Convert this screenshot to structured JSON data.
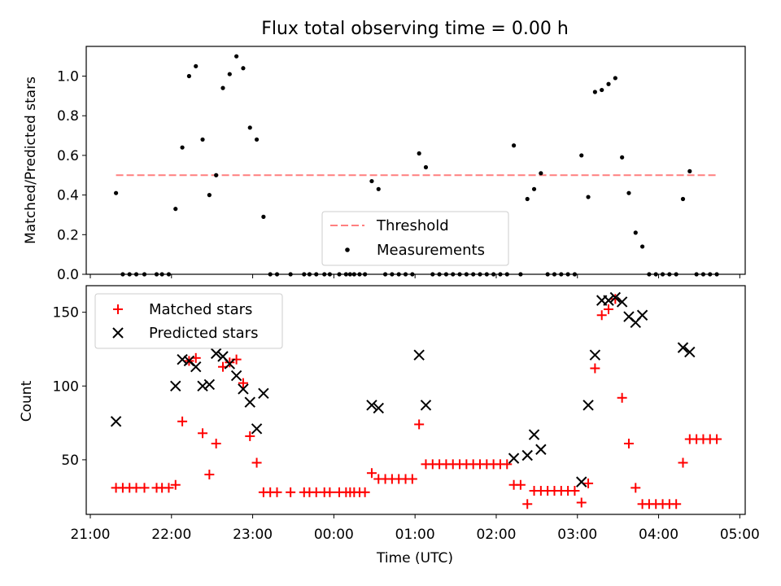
{
  "chart_data": [
    {
      "type": "scatter",
      "title": "Flux total observing time = 0.00 h",
      "xlabel": "",
      "ylabel": "Matched/Predicted stars",
      "ylim": [
        0,
        1.15
      ],
      "y_ticks": [
        "0.0",
        "0.2",
        "0.4",
        "0.6",
        "0.8",
        "1.0"
      ],
      "legend_position": "lower-center",
      "threshold": {
        "name": "Threshold",
        "value": 0.5,
        "x_start": "21:19",
        "x_end": "04:43",
        "color": "#ff7f7f"
      },
      "series": [
        {
          "name": "Measurements",
          "color": "#000000",
          "points": [
            [
              "21:19",
              0.41
            ],
            [
              "21:24",
              0.0
            ],
            [
              "21:29",
              0.0
            ],
            [
              "21:34",
              0.0
            ],
            [
              "21:40",
              0.0
            ],
            [
              "21:49",
              0.0
            ],
            [
              "21:53",
              0.0
            ],
            [
              "21:58",
              0.0
            ],
            [
              "22:03",
              0.33
            ],
            [
              "22:08",
              0.64
            ],
            [
              "22:13",
              1.0
            ],
            [
              "22:18",
              1.05
            ],
            [
              "22:23",
              0.68
            ],
            [
              "22:28",
              0.4
            ],
            [
              "22:33",
              0.5
            ],
            [
              "22:38",
              0.94
            ],
            [
              "22:43",
              1.01
            ],
            [
              "22:48",
              1.1
            ],
            [
              "22:53",
              1.04
            ],
            [
              "22:58",
              0.74
            ],
            [
              "23:03",
              0.68
            ],
            [
              "23:08",
              0.29
            ],
            [
              "23:13",
              0.0
            ],
            [
              "23:18",
              0.0
            ],
            [
              "23:28",
              0.0
            ],
            [
              "23:38",
              0.0
            ],
            [
              "23:42",
              0.0
            ],
            [
              "23:47",
              0.0
            ],
            [
              "23:53",
              0.0
            ],
            [
              "23:57",
              0.0
            ],
            [
              "00:04",
              0.0
            ],
            [
              "00:09",
              0.0
            ],
            [
              "00:12",
              0.0
            ],
            [
              "00:15",
              0.0
            ],
            [
              "00:19",
              0.0
            ],
            [
              "00:23",
              0.0
            ],
            [
              "00:28",
              0.47
            ],
            [
              "00:33",
              0.43
            ],
            [
              "00:38",
              0.0
            ],
            [
              "00:43",
              0.0
            ],
            [
              "00:48",
              0.0
            ],
            [
              "00:53",
              0.0
            ],
            [
              "00:58",
              0.0
            ],
            [
              "01:03",
              0.61
            ],
            [
              "01:08",
              0.54
            ],
            [
              "01:13",
              0.0
            ],
            [
              "01:18",
              0.0
            ],
            [
              "01:23",
              0.0
            ],
            [
              "01:28",
              0.0
            ],
            [
              "01:33",
              0.0
            ],
            [
              "01:38",
              0.0
            ],
            [
              "01:43",
              0.0
            ],
            [
              "01:48",
              0.0
            ],
            [
              "01:53",
              0.0
            ],
            [
              "01:58",
              0.0
            ],
            [
              "02:03",
              0.0
            ],
            [
              "02:08",
              0.0
            ],
            [
              "02:13",
              0.65
            ],
            [
              "02:18",
              0.0
            ],
            [
              "02:23",
              0.38
            ],
            [
              "02:28",
              0.43
            ],
            [
              "02:33",
              0.51
            ],
            [
              "02:38",
              0.0
            ],
            [
              "02:43",
              0.0
            ],
            [
              "02:48",
              0.0
            ],
            [
              "02:53",
              0.0
            ],
            [
              "02:58",
              0.0
            ],
            [
              "03:03",
              0.6
            ],
            [
              "03:08",
              0.39
            ],
            [
              "03:13",
              0.92
            ],
            [
              "03:18",
              0.93
            ],
            [
              "03:23",
              0.96
            ],
            [
              "03:28",
              0.99
            ],
            [
              "03:33",
              0.59
            ],
            [
              "03:38",
              0.41
            ],
            [
              "03:43",
              0.21
            ],
            [
              "03:48",
              0.14
            ],
            [
              "03:53",
              0.0
            ],
            [
              "03:58",
              0.0
            ],
            [
              "04:03",
              0.0
            ],
            [
              "04:08",
              0.0
            ],
            [
              "04:13",
              0.0
            ],
            [
              "04:18",
              0.38
            ],
            [
              "04:23",
              0.52
            ],
            [
              "04:28",
              0.0
            ],
            [
              "04:33",
              0.0
            ],
            [
              "04:38",
              0.0
            ],
            [
              "04:43",
              0.0
            ]
          ]
        }
      ]
    },
    {
      "type": "scatter",
      "title": "",
      "xlabel": "Time (UTC)",
      "ylabel": "Count",
      "ylim": [
        13,
        168
      ],
      "y_ticks": [
        "50",
        "100",
        "150"
      ],
      "x_ticks": [
        "21:00",
        "22:00",
        "23:00",
        "00:00",
        "01:00",
        "02:00",
        "03:00",
        "04:00",
        "05:00"
      ],
      "xlim": [
        "20:57",
        "05:04"
      ],
      "legend_position": "upper-left",
      "series": [
        {
          "name": "Matched stars",
          "color": "#ff0000",
          "marker": "+",
          "points": [
            [
              "21:19",
              31
            ],
            [
              "21:24",
              31
            ],
            [
              "21:29",
              31
            ],
            [
              "21:34",
              31
            ],
            [
              "21:40",
              31
            ],
            [
              "21:49",
              31
            ],
            [
              "21:53",
              31
            ],
            [
              "21:58",
              31
            ],
            [
              "22:03",
              33
            ],
            [
              "22:08",
              76
            ],
            [
              "22:13",
              117
            ],
            [
              "22:18",
              119
            ],
            [
              "22:23",
              68
            ],
            [
              "22:28",
              40
            ],
            [
              "22:33",
              61
            ],
            [
              "22:38",
              113
            ],
            [
              "22:43",
              116
            ],
            [
              "22:48",
              118
            ],
            [
              "22:53",
              102
            ],
            [
              "22:58",
              66
            ],
            [
              "23:03",
              48
            ],
            [
              "23:08",
              28
            ],
            [
              "23:13",
              28
            ],
            [
              "23:18",
              28
            ],
            [
              "23:28",
              28
            ],
            [
              "23:38",
              28
            ],
            [
              "23:42",
              28
            ],
            [
              "23:47",
              28
            ],
            [
              "23:53",
              28
            ],
            [
              "23:57",
              28
            ],
            [
              "00:04",
              28
            ],
            [
              "00:09",
              28
            ],
            [
              "00:12",
              28
            ],
            [
              "00:15",
              28
            ],
            [
              "00:19",
              28
            ],
            [
              "00:23",
              28
            ],
            [
              "00:28",
              41
            ],
            [
              "00:33",
              37
            ],
            [
              "00:38",
              37
            ],
            [
              "00:43",
              37
            ],
            [
              "00:48",
              37
            ],
            [
              "00:53",
              37
            ],
            [
              "00:58",
              37
            ],
            [
              "01:03",
              74
            ],
            [
              "01:08",
              47
            ],
            [
              "01:13",
              47
            ],
            [
              "01:18",
              47
            ],
            [
              "01:23",
              47
            ],
            [
              "01:28",
              47
            ],
            [
              "01:33",
              47
            ],
            [
              "01:38",
              47
            ],
            [
              "01:43",
              47
            ],
            [
              "01:48",
              47
            ],
            [
              "01:53",
              47
            ],
            [
              "01:58",
              47
            ],
            [
              "02:03",
              47
            ],
            [
              "02:08",
              47
            ],
            [
              "02:13",
              33
            ],
            [
              "02:18",
              33
            ],
            [
              "02:23",
              20
            ],
            [
              "02:28",
              29
            ],
            [
              "02:33",
              29
            ],
            [
              "02:38",
              29
            ],
            [
              "02:43",
              29
            ],
            [
              "02:48",
              29
            ],
            [
              "02:53",
              29
            ],
            [
              "02:58",
              29
            ],
            [
              "03:03",
              21
            ],
            [
              "03:08",
              34
            ],
            [
              "03:13",
              112
            ],
            [
              "03:18",
              148
            ],
            [
              "03:23",
              152
            ],
            [
              "03:28",
              159
            ],
            [
              "03:33",
              92
            ],
            [
              "03:38",
              61
            ],
            [
              "03:43",
              31
            ],
            [
              "03:48",
              20
            ],
            [
              "03:53",
              20
            ],
            [
              "03:58",
              20
            ],
            [
              "04:03",
              20
            ],
            [
              "04:08",
              20
            ],
            [
              "04:13",
              20
            ],
            [
              "04:18",
              48
            ],
            [
              "04:23",
              64
            ],
            [
              "04:28",
              64
            ],
            [
              "04:33",
              64
            ],
            [
              "04:38",
              64
            ],
            [
              "04:43",
              64
            ]
          ]
        },
        {
          "name": "Predicted stars",
          "color": "#000000",
          "marker": "x",
          "points": [
            [
              "21:19",
              76
            ],
            [
              "22:03",
              100
            ],
            [
              "22:08",
              118
            ],
            [
              "22:13",
              117
            ],
            [
              "22:18",
              113
            ],
            [
              "22:23",
              100
            ],
            [
              "22:28",
              101
            ],
            [
              "22:33",
              122
            ],
            [
              "22:38",
              120
            ],
            [
              "22:43",
              115
            ],
            [
              "22:48",
              107
            ],
            [
              "22:53",
              98
            ],
            [
              "22:58",
              89
            ],
            [
              "23:03",
              71
            ],
            [
              "23:08",
              95
            ],
            [
              "00:28",
              87
            ],
            [
              "00:33",
              85
            ],
            [
              "01:03",
              121
            ],
            [
              "01:08",
              87
            ],
            [
              "02:13",
              51
            ],
            [
              "02:23",
              53
            ],
            [
              "02:28",
              67
            ],
            [
              "02:33",
              57
            ],
            [
              "03:03",
              35
            ],
            [
              "03:08",
              87
            ],
            [
              "03:13",
              121
            ],
            [
              "03:18",
              158
            ],
            [
              "03:23",
              158
            ],
            [
              "03:28",
              160
            ],
            [
              "03:33",
              157
            ],
            [
              "03:38",
              147
            ],
            [
              "03:43",
              143
            ],
            [
              "03:48",
              148
            ],
            [
              "04:18",
              126
            ],
            [
              "04:23",
              123
            ]
          ]
        }
      ]
    }
  ]
}
